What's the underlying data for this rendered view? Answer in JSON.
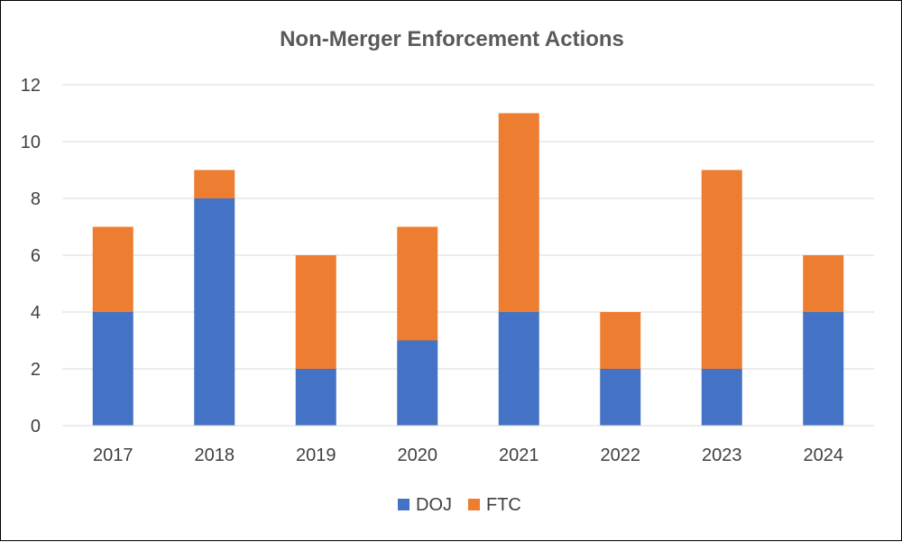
{
  "chart_data": {
    "type": "bar",
    "stacked": true,
    "title": "Non-Merger Enforcement Actions",
    "xlabel": "",
    "ylabel": "",
    "categories": [
      "2017",
      "2018",
      "2019",
      "2020",
      "2021",
      "2022",
      "2023",
      "2024"
    ],
    "series": [
      {
        "name": "DOJ",
        "color": "#4472C4",
        "values": [
          4,
          8,
          2,
          3,
          4,
          2,
          2,
          4
        ]
      },
      {
        "name": "FTC",
        "color": "#ED7D31",
        "values": [
          3,
          1,
          4,
          4,
          7,
          2,
          7,
          2
        ]
      }
    ],
    "ylim": [
      0,
      12
    ],
    "yticks": [
      "0",
      "2",
      "4",
      "6",
      "8",
      "10",
      "12"
    ],
    "grid": true,
    "legend_position": "bottom"
  }
}
